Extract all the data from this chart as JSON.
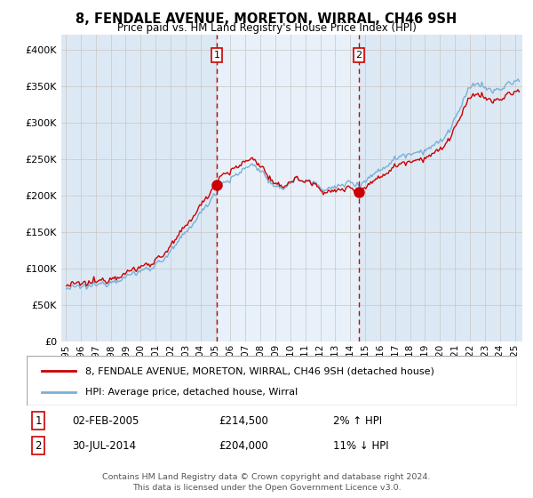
{
  "title": "8, FENDALE AVENUE, MORETON, WIRRAL, CH46 9SH",
  "subtitle": "Price paid vs. HM Land Registry's House Price Index (HPI)",
  "ylim": [
    0,
    420000
  ],
  "yticks": [
    0,
    50000,
    100000,
    150000,
    200000,
    250000,
    300000,
    350000,
    400000
  ],
  "xlim_start": 1994.7,
  "xlim_end": 2025.5,
  "xticks": [
    1995,
    1996,
    1997,
    1998,
    1999,
    2000,
    2001,
    2002,
    2003,
    2004,
    2005,
    2006,
    2007,
    2008,
    2009,
    2010,
    2011,
    2012,
    2013,
    2014,
    2015,
    2016,
    2017,
    2018,
    2019,
    2020,
    2021,
    2022,
    2023,
    2024,
    2025
  ],
  "legend_property_label": "8, FENDALE AVENUE, MORETON, WIRRAL, CH46 9SH (detached house)",
  "legend_hpi_label": "HPI: Average price, detached house, Wirral",
  "property_color": "#cc0000",
  "hpi_color": "#7ab0d4",
  "marker1_x": 2005.09,
  "marker1_y": 214500,
  "marker2_x": 2014.58,
  "marker2_y": 204000,
  "annotation1_date": "02-FEB-2005",
  "annotation1_price": "£214,500",
  "annotation1_hpi": "2% ↑ HPI",
  "annotation2_date": "30-JUL-2014",
  "annotation2_price": "£204,000",
  "annotation2_hpi": "11% ↓ HPI",
  "footer": "Contains HM Land Registry data © Crown copyright and database right 2024.\nThis data is licensed under the Open Government Licence v3.0.",
  "background_color": "#dce9f5",
  "shade_color": "#e8f1fa",
  "plot_bg_color": "#ffffff",
  "shade_x1": 2005.09,
  "shade_x2": 2014.58
}
